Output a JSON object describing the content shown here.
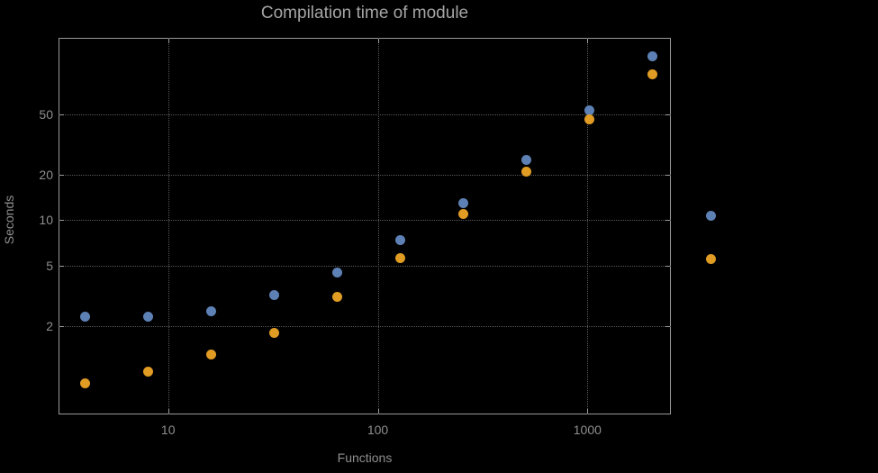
{
  "chart_data": {
    "type": "scatter",
    "title": "Compilation time of module",
    "xlabel": "Functions",
    "ylabel": "Seconds",
    "x_scale": "log",
    "y_scale": "log",
    "xlim": [
      3,
      2500
    ],
    "ylim": [
      0.52,
      160
    ],
    "grid": true,
    "legend_position": "right",
    "x_gridlines": [
      10,
      100,
      1000
    ],
    "x_gridline_labels": [
      "10",
      "100",
      "1000"
    ],
    "y_gridlines": [
      2,
      5,
      10,
      20,
      50
    ],
    "y_gridline_labels": [
      "2",
      "5",
      "10",
      "20",
      "50"
    ],
    "x": [
      4,
      8,
      16,
      32,
      64,
      128,
      256,
      512,
      1024,
      2048
    ],
    "series": [
      {
        "name": "blue",
        "color": "#5e81b5",
        "values": [
          2.3,
          2.3,
          2.5,
          3.2,
          4.5,
          7.4,
          13,
          25,
          53,
          120
        ]
      },
      {
        "name": "orange",
        "color": "#e19c24",
        "values": [
          0.84,
          1.0,
          1.3,
          1.8,
          3.1,
          5.6,
          11,
          21,
          46,
          92
        ]
      }
    ]
  },
  "colors": {
    "background": "#000000",
    "frame": "#9a9a9a",
    "grid": "#595959",
    "title-text": "#a5a5a5",
    "label-text": "#8f8f8f"
  }
}
